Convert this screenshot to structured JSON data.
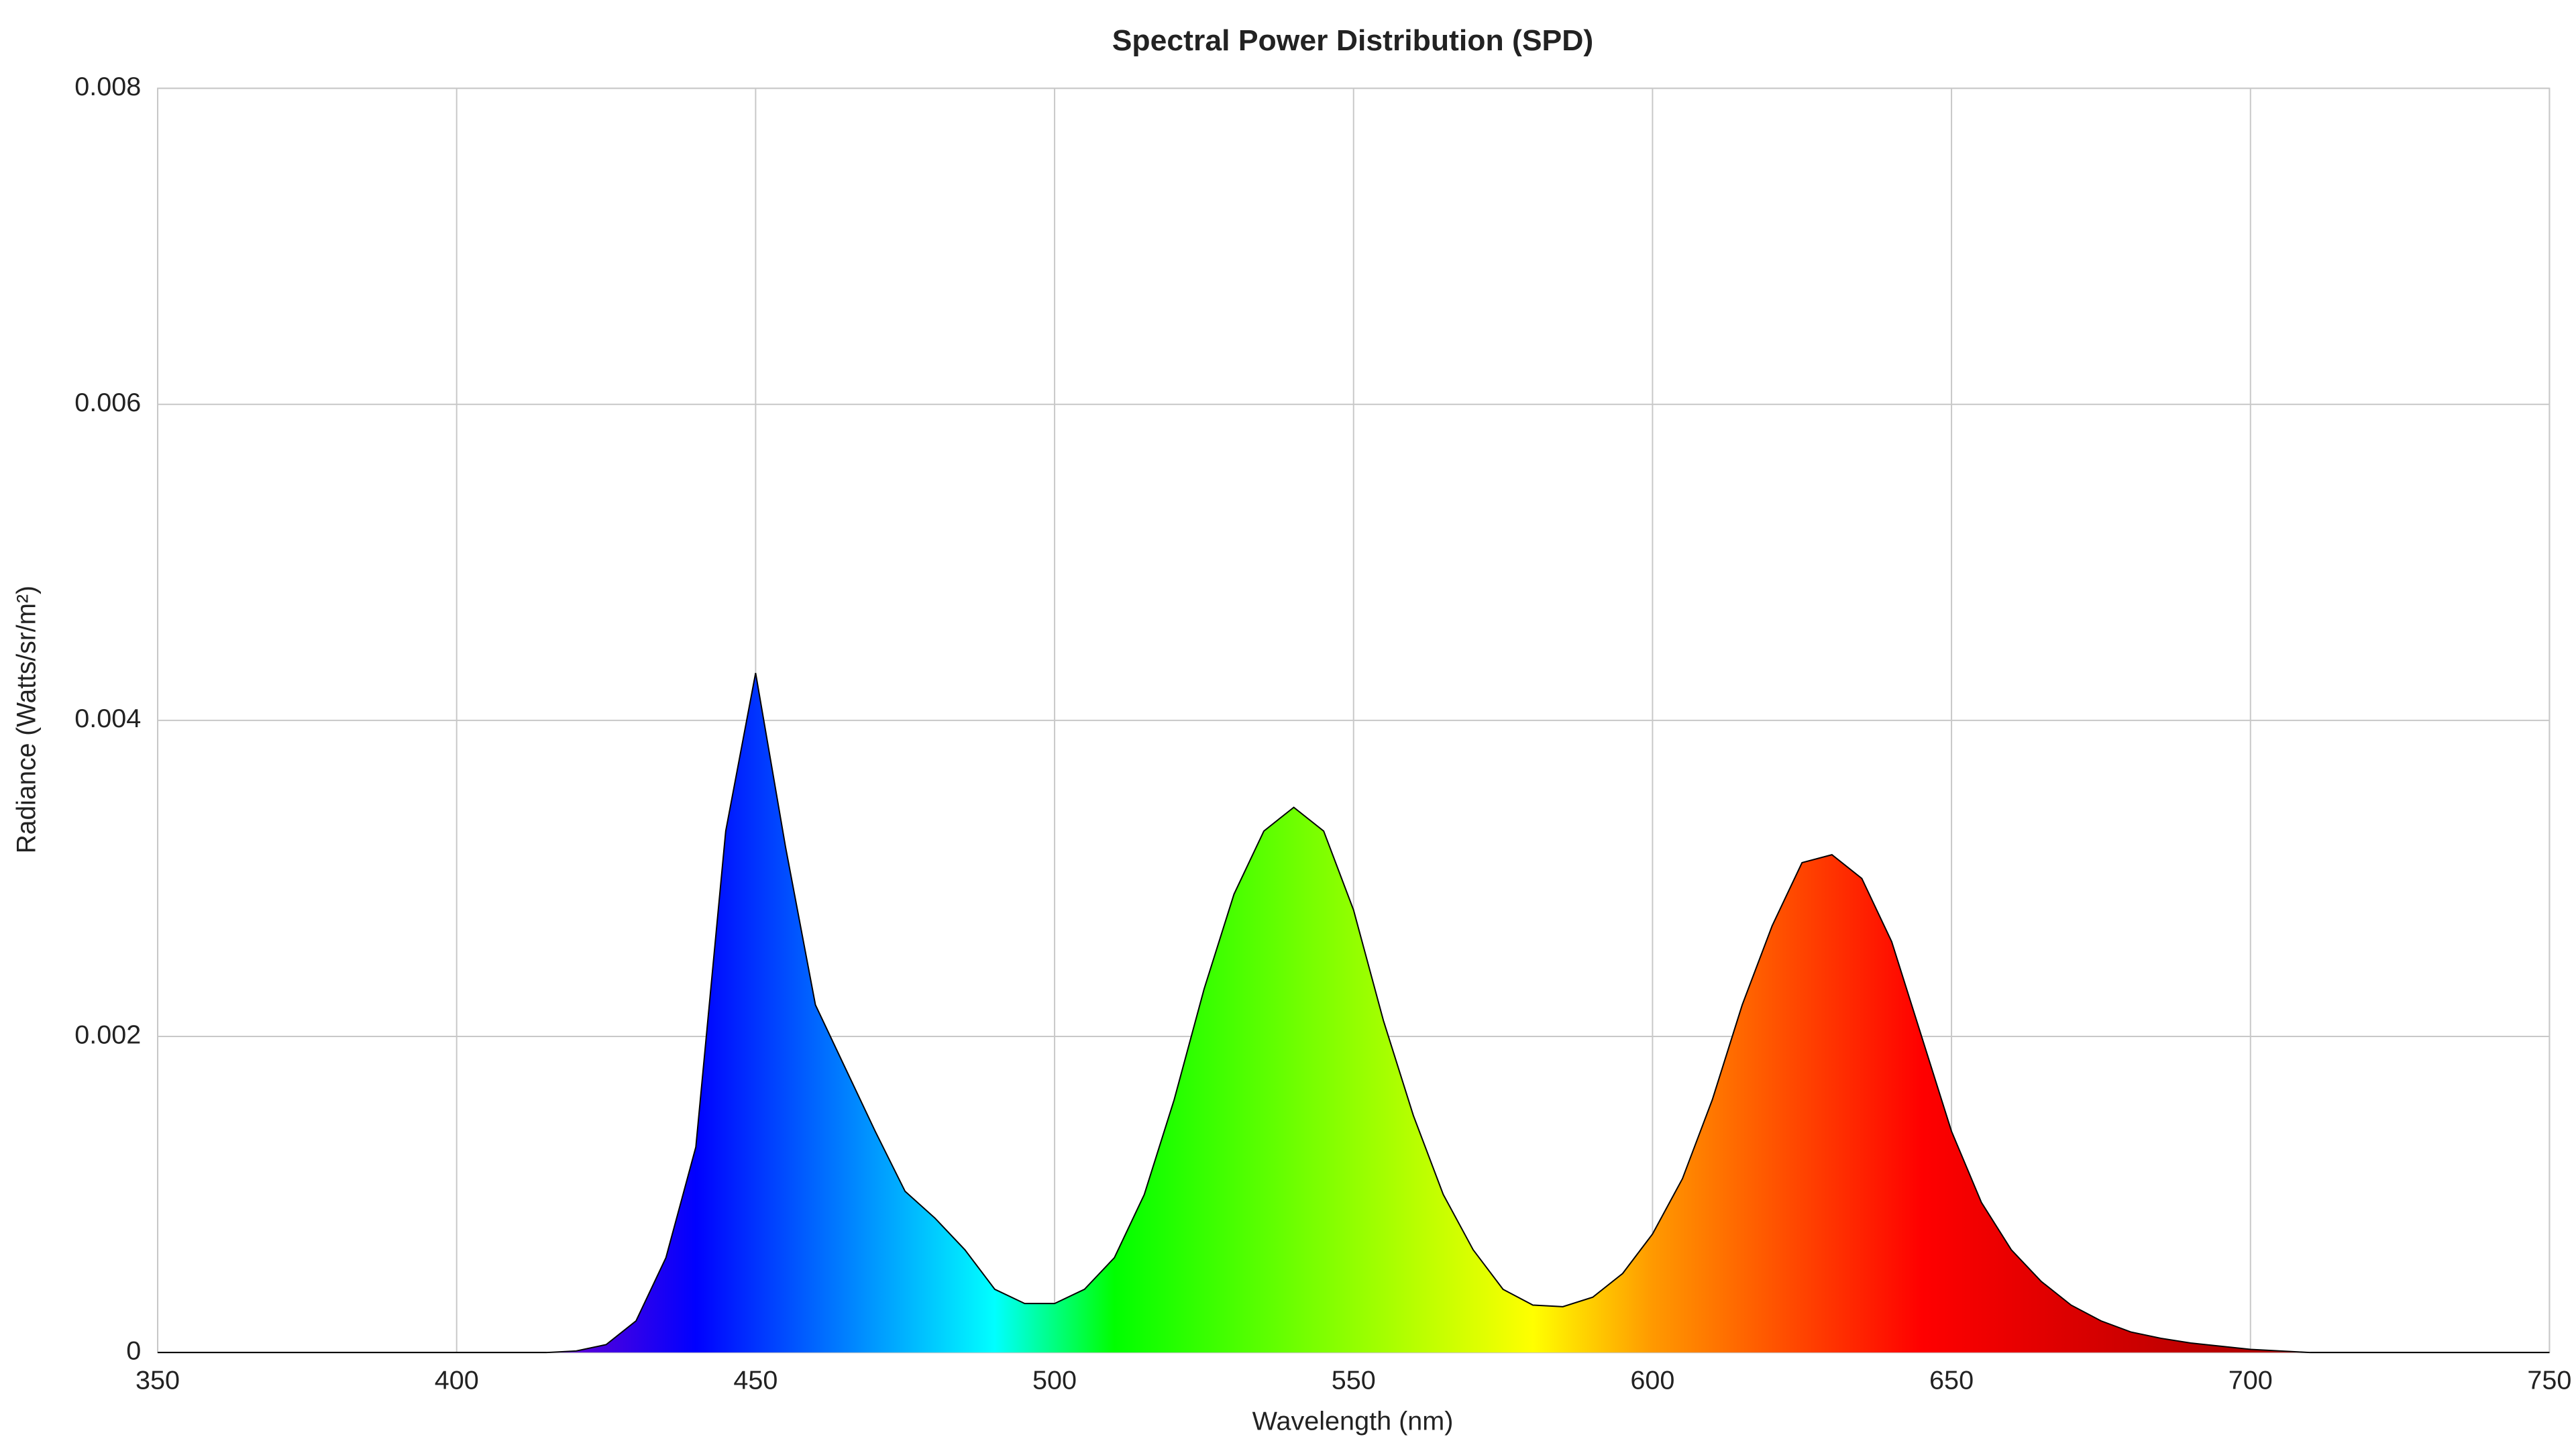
{
  "chart_data": {
    "type": "area",
    "title": "Spectral Power Distribution (SPD)",
    "x_label": "Wavelength (nm)",
    "y_label": "Radiance (Watts/sr/m²)",
    "x": [
      350,
      355,
      360,
      365,
      370,
      375,
      380,
      385,
      390,
      395,
      400,
      405,
      410,
      415,
      420,
      425,
      430,
      435,
      440,
      445,
      450,
      455,
      460,
      465,
      470,
      475,
      480,
      485,
      490,
      495,
      500,
      505,
      510,
      515,
      520,
      525,
      530,
      535,
      540,
      545,
      550,
      555,
      560,
      565,
      570,
      575,
      580,
      585,
      590,
      595,
      600,
      605,
      610,
      615,
      620,
      625,
      630,
      635,
      640,
      645,
      650,
      655,
      660,
      665,
      670,
      675,
      680,
      685,
      690,
      695,
      700,
      705,
      710,
      715,
      720,
      725,
      730,
      735,
      740,
      745,
      750
    ],
    "values": [
      0,
      0,
      0,
      0,
      0,
      0,
      0,
      0,
      0,
      0,
      0,
      0,
      0,
      0,
      1e-05,
      5e-05,
      0.0002,
      0.0006,
      0.0013,
      0.0033,
      0.0043,
      0.0032,
      0.0022,
      0.0018,
      0.0014,
      0.00102,
      0.00085,
      0.00065,
      0.0004,
      0.00031,
      0.00031,
      0.0004,
      0.0006,
      0.001,
      0.0016,
      0.0023,
      0.0029,
      0.0033,
      0.00345,
      0.0033,
      0.0028,
      0.0021,
      0.0015,
      0.001,
      0.00065,
      0.0004,
      0.0003,
      0.00029,
      0.00035,
      0.0005,
      0.00075,
      0.0011,
      0.0016,
      0.0022,
      0.0027,
      0.0031,
      0.00315,
      0.003,
      0.0026,
      0.002,
      0.0014,
      0.00095,
      0.00065,
      0.00045,
      0.0003,
      0.0002,
      0.00013,
      9e-05,
      6e-05,
      4e-05,
      2e-05,
      1e-05,
      0,
      0,
      0,
      0,
      0,
      0,
      0,
      0,
      0
    ],
    "xlim": [
      350,
      750
    ],
    "xticks": [
      350,
      400,
      450,
      500,
      550,
      600,
      650,
      700,
      750
    ],
    "ylim": [
      0,
      0.008
    ],
    "yticks": [
      0,
      0.002,
      0.004,
      0.006,
      0.008
    ],
    "grid": true,
    "line_color": "#000000"
  }
}
